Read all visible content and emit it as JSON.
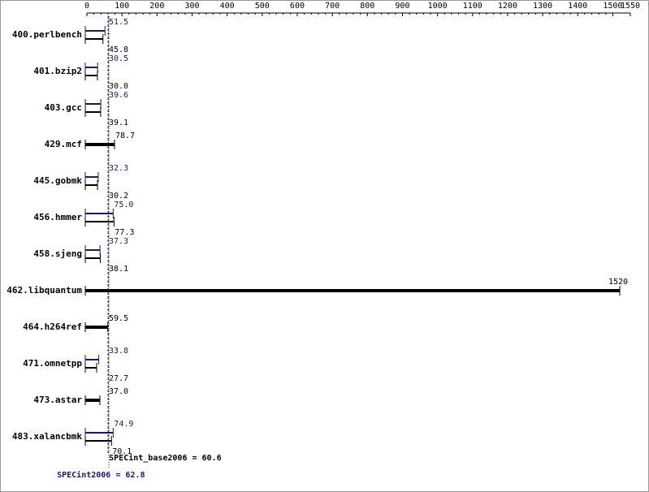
{
  "chart_data": {
    "type": "bar",
    "orientation": "horizontal",
    "categories": [
      "400.perlbench",
      "401.bzip2",
      "403.gcc",
      "429.mcf",
      "445.gobmk",
      "456.hmmer",
      "458.sjeng",
      "462.libquantum",
      "464.h264ref",
      "471.omnetpp",
      "473.astar",
      "483.xalancbmk"
    ],
    "series": [
      {
        "name": "SPECint2006",
        "color": "#191970",
        "values": [
          51.5,
          30.5,
          39.6,
          null,
          32.3,
          75.0,
          37.3,
          null,
          null,
          33.8,
          null,
          74.9
        ],
        "value_labels": [
          "51.5",
          "30.5",
          "39.6",
          null,
          "32.3",
          "75.0",
          "37.3",
          null,
          null,
          "33.8",
          null,
          "74.9"
        ]
      },
      {
        "name": "SPECint_base2006",
        "color": "#000000",
        "values": [
          45.8,
          30.0,
          39.1,
          78.7,
          30.2,
          77.3,
          38.1,
          1520,
          59.5,
          27.7,
          37.0,
          70.1
        ],
        "value_labels": [
          "45.8",
          "30.0",
          "39.1",
          "78.7",
          "30.2",
          "77.3",
          "38.1",
          "1520",
          "59.5",
          "27.7",
          "37.0",
          "70.1"
        ]
      }
    ],
    "summary": [
      {
        "value": 60.6,
        "label": "SPECint_base2006 = 60.6",
        "color": "#000000"
      },
      {
        "value": 62.8,
        "label": "SPECint2006 = 62.8",
        "color": "#191970"
      }
    ],
    "xlim": [
      0,
      1550
    ],
    "xticks": [
      0,
      100,
      200,
      300,
      400,
      500,
      600,
      700,
      800,
      900,
      1000,
      1100,
      1200,
      1300,
      1400,
      1500,
      1550
    ]
  }
}
